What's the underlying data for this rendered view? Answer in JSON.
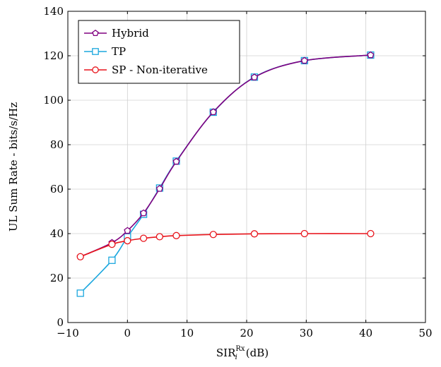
{
  "chart_data": {
    "type": "line",
    "xlabel": "SIR",
    "xlabel_sup": "Rx",
    "xlabel_sub": "i",
    "xlabel_unit": "(dB)",
    "ylabel": "UL Sum Rate - bits/s/Hz",
    "xlim": [
      -10,
      50
    ],
    "ylim": [
      0,
      140
    ],
    "xticks": [
      -10,
      0,
      10,
      20,
      30,
      40,
      50
    ],
    "xtick_labels": [
      "−10",
      "0",
      "10",
      "20",
      "30",
      "40",
      "50"
    ],
    "yticks": [
      0,
      20,
      40,
      60,
      80,
      100,
      120,
      140
    ],
    "ytick_labels": [
      "0",
      "20",
      "40",
      "60",
      "80",
      "100",
      "120",
      "140"
    ],
    "grid": true,
    "legend_position": "top-left",
    "series": [
      {
        "name": "Hybrid",
        "color": "#800080",
        "marker": "pentagon",
        "x": [
          -7.9,
          -2.6,
          0,
          2.7,
          5.4,
          8.2,
          14.4,
          21.3,
          29.7,
          40.8
        ],
        "y": [
          29.6,
          35.9,
          41.3,
          49.2,
          60.2,
          72.4,
          94.7,
          110.3,
          117.8,
          120.3
        ]
      },
      {
        "name": "TP",
        "color": "#1ba7de",
        "marker": "square",
        "x": [
          -7.9,
          -2.6,
          0,
          2.7,
          5.4,
          8.2,
          14.4,
          21.3,
          29.7,
          40.8
        ],
        "y": [
          13.2,
          28.0,
          38.5,
          48.7,
          60.5,
          72.6,
          94.6,
          110.4,
          117.8,
          120.3
        ]
      },
      {
        "name": "SP - Non-iterative",
        "color": "#e8141b",
        "marker": "circle",
        "x": [
          -7.9,
          -2.6,
          0,
          2.7,
          5.4,
          8.2,
          14.4,
          21.3,
          29.7,
          40.8
        ],
        "y": [
          29.6,
          35.2,
          36.8,
          37.9,
          38.6,
          39.1,
          39.6,
          39.9,
          40.0,
          40.0
        ]
      }
    ]
  }
}
